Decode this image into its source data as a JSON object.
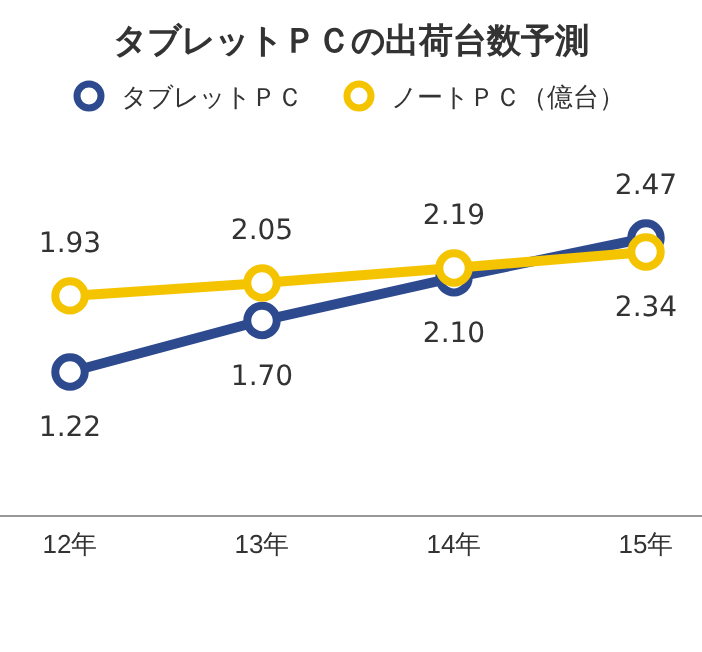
{
  "chart_data": {
    "type": "line",
    "title": "タブレットＰＣの出荷台数予測",
    "categories": [
      "12年",
      "13年",
      "14年",
      "15年"
    ],
    "series": [
      {
        "name": "タブレットＰＣ",
        "color": "#2e4a8e",
        "values": [
          1.22,
          1.7,
          2.1,
          2.47
        ],
        "value_labels": [
          "1.22",
          "1.70",
          "2.10",
          "2.47"
        ]
      },
      {
        "name": "ノートＰＣ（億台）",
        "color": "#f5c400",
        "values": [
          1.93,
          2.05,
          2.19,
          2.34
        ],
        "value_labels": [
          "1.93",
          "2.05",
          "2.19",
          "2.34"
        ]
      }
    ],
    "legend": "top",
    "marker": "circle"
  }
}
